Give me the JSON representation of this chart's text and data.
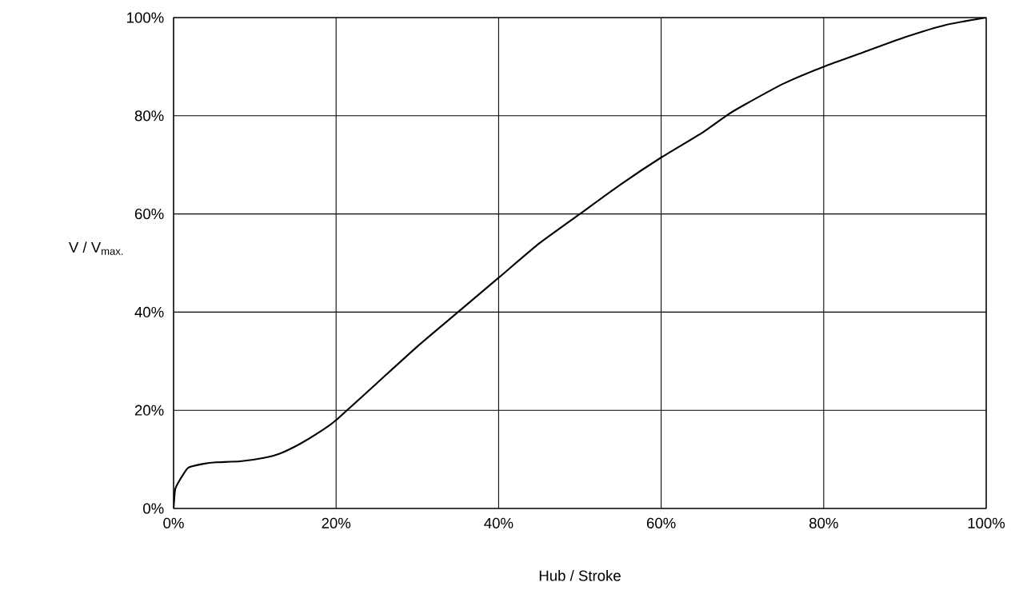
{
  "chart_data": {
    "type": "line",
    "xlabel": "Hub / Stroke",
    "ylabel": "V / V$_{max.}$",
    "x": [
      0,
      0.2,
      0.8,
      1.8,
      3.7,
      5.2,
      8.2,
      11.1,
      13.1,
      15.6,
      18,
      20,
      25,
      30,
      35,
      40,
      45,
      50,
      55,
      60,
      65,
      68,
      70,
      75,
      80,
      85,
      90,
      95,
      100
    ],
    "series": [
      {
        "color": "#000000",
        "values": [
          0,
          3.9,
          5.9,
          8.3,
          9.1,
          9.4,
          9.6,
          10.3,
          11.2,
          13.2,
          15.6,
          18,
          25.5,
          33,
          40,
          47,
          54,
          60,
          66,
          71.5,
          76.5,
          80,
          82,
          86.5,
          90,
          93,
          96,
          98.5,
          100
        ]
      }
    ],
    "xlim": [
      0,
      100
    ],
    "ylim": [
      0,
      100
    ],
    "xticks": [
      {
        "value": 0,
        "label": "0%"
      },
      {
        "value": 20,
        "label": "20%"
      },
      {
        "value": 40,
        "label": "40%"
      },
      {
        "value": 60,
        "label": "60%"
      },
      {
        "value": 80,
        "label": "80%"
      },
      {
        "value": 100,
        "label": "100%"
      }
    ],
    "yticks": [
      {
        "value": 0,
        "label": "0%"
      },
      {
        "value": 20,
        "label": "20%"
      },
      {
        "value": 40,
        "label": "40%"
      },
      {
        "value": 60,
        "label": "60%"
      },
      {
        "value": 80,
        "label": "80%"
      },
      {
        "value": 100,
        "label": "100%"
      }
    ],
    "grid": true,
    "marker": "none",
    "line_style": "solid"
  }
}
